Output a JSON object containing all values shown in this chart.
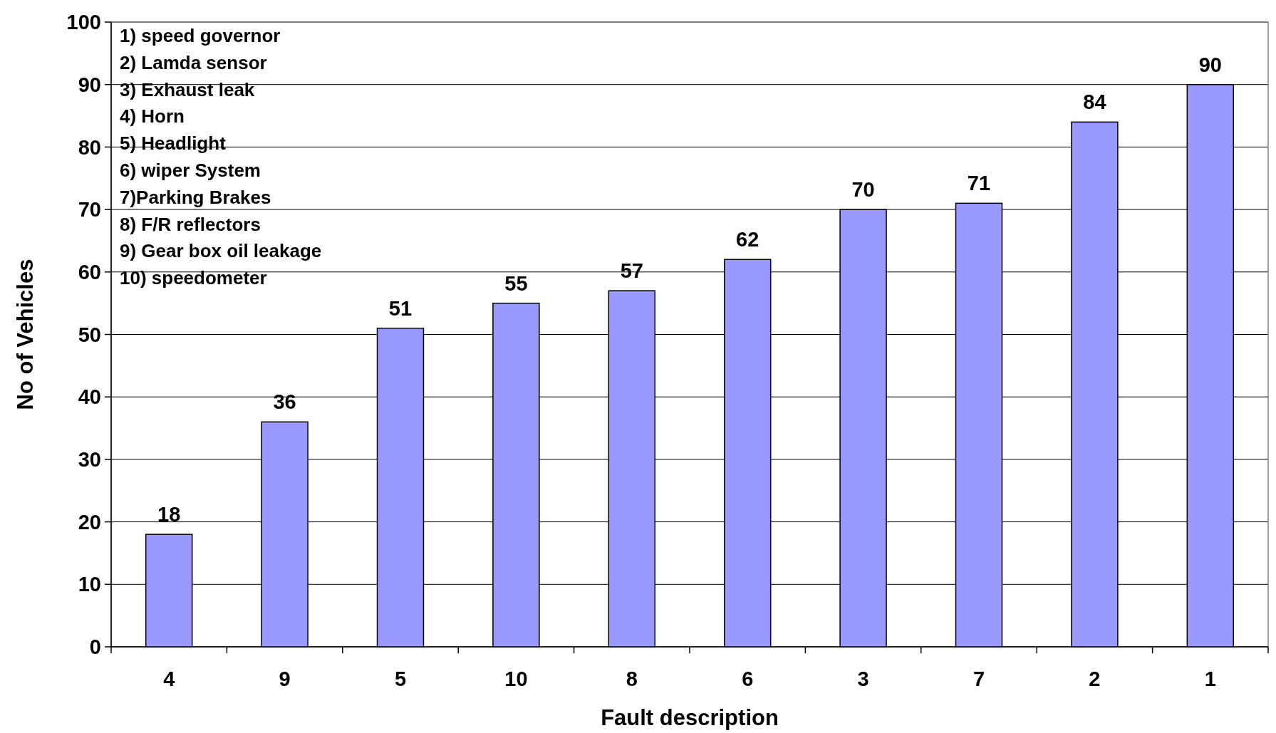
{
  "chart_data": {
    "type": "bar",
    "xlabel": "Fault description",
    "ylabel": "No of Vehicles",
    "categories": [
      "4",
      "9",
      "5",
      "10",
      "8",
      "6",
      "3",
      "7",
      "2",
      "1"
    ],
    "values": [
      18,
      36,
      51,
      55,
      57,
      62,
      70,
      71,
      84,
      90
    ],
    "color": "#9999ff",
    "ylim": [
      0,
      100
    ],
    "yticks": [
      0,
      10,
      20,
      30,
      40,
      50,
      60,
      70,
      80,
      90,
      100
    ],
    "grid": "y",
    "data_labels": true,
    "annotations": [
      "1) speed  governor",
      "2) Lamda sensor",
      "3) Exhaust leak",
      "4) Horn",
      "5) Headlight",
      "6) wiper System",
      "7)Parking Brakes",
      "8) F/R reflectors",
      "9) Gear box oil leakage",
      "10) speedometer"
    ]
  }
}
